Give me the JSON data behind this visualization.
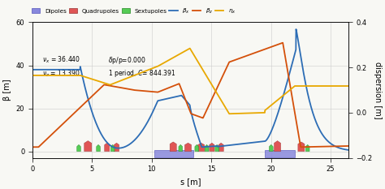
{
  "xlabel": "s [m]",
  "ylabel_left": "β [m]",
  "ylabel_right": "dispersion [m]",
  "xlim": [
    0,
    26.5
  ],
  "ylim_left": [
    -3,
    60
  ],
  "ylim_right": [
    -0.2,
    0.4
  ],
  "xticks": [
    0,
    5,
    10,
    15,
    20,
    25
  ],
  "yticks_left": [
    0,
    20,
    40,
    60
  ],
  "yticks_right": [
    -0.2,
    0.0,
    0.2,
    0.4
  ],
  "beta_x_color": "#2d6db5",
  "beta_z_color": "#d4500a",
  "eta_x_color": "#e8a800",
  "dipole_color": "#8888dd",
  "quadrupole_color": "#e05555",
  "sextupole_color": "#55cc55",
  "bg_color": "#f8f8f4",
  "grid_color": "#cccccc"
}
